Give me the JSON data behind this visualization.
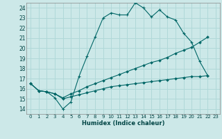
{
  "xlabel": "Humidex (Indice chaleur)",
  "background_color": "#cce8e8",
  "grid_color": "#b0d8d8",
  "line_color": "#006666",
  "xlim": [
    -0.5,
    23.5
  ],
  "ylim": [
    13.5,
    24.5
  ],
  "yticks": [
    14,
    15,
    16,
    17,
    18,
    19,
    20,
    21,
    22,
    23,
    24
  ],
  "xticks": [
    0,
    1,
    2,
    3,
    4,
    5,
    6,
    7,
    8,
    9,
    10,
    11,
    12,
    13,
    14,
    15,
    16,
    17,
    18,
    19,
    20,
    21,
    22,
    23
  ],
  "line1_x": [
    0,
    1,
    2,
    3,
    4,
    5,
    6,
    7,
    8,
    9,
    10,
    11,
    12,
    13,
    14,
    15,
    16,
    17,
    18,
    19,
    20,
    21,
    22
  ],
  "line1_y": [
    16.5,
    15.8,
    15.7,
    15.1,
    14.0,
    14.7,
    17.2,
    19.2,
    21.1,
    23.0,
    23.5,
    23.3,
    23.3,
    24.5,
    24.0,
    23.1,
    23.8,
    23.1,
    22.8,
    21.5,
    20.6,
    18.7,
    17.3
  ],
  "line2_x": [
    0,
    1,
    2,
    3,
    4,
    5,
    6,
    7,
    8,
    9,
    10,
    11,
    12,
    13,
    14,
    15,
    16,
    17,
    18,
    19,
    20,
    21,
    22
  ],
  "line2_y": [
    16.5,
    15.8,
    15.7,
    15.5,
    15.1,
    15.5,
    15.8,
    16.2,
    16.5,
    16.8,
    17.1,
    17.4,
    17.7,
    18.0,
    18.3,
    18.6,
    18.8,
    19.1,
    19.5,
    19.8,
    20.1,
    20.6,
    21.1
  ],
  "line3_x": [
    0,
    1,
    2,
    3,
    4,
    5,
    6,
    7,
    8,
    9,
    10,
    11,
    12,
    13,
    14,
    15,
    16,
    17,
    18,
    19,
    20,
    21,
    22
  ],
  "line3_y": [
    16.5,
    15.8,
    15.7,
    15.5,
    15.0,
    15.2,
    15.4,
    15.6,
    15.8,
    16.0,
    16.2,
    16.3,
    16.4,
    16.5,
    16.6,
    16.7,
    16.8,
    16.9,
    17.0,
    17.1,
    17.2,
    17.2,
    17.3
  ]
}
